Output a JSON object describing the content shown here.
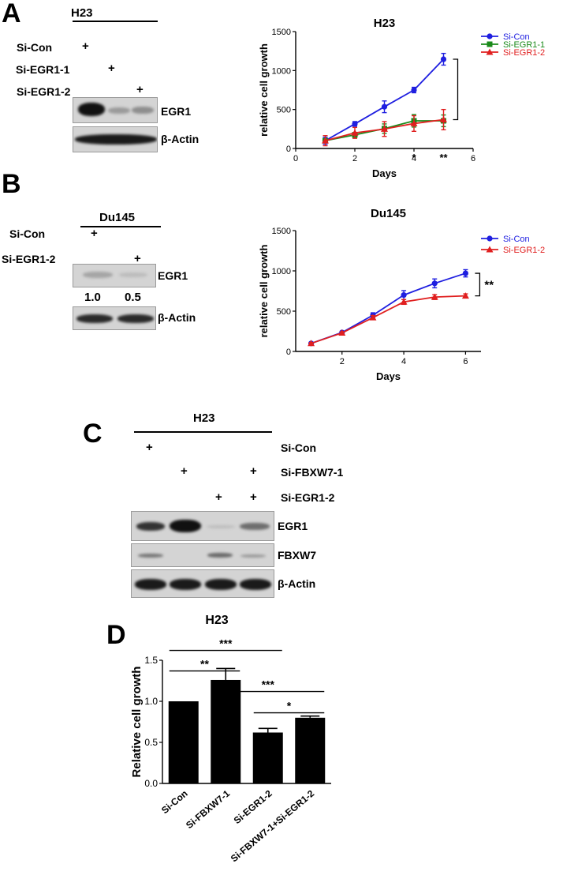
{
  "panel_a": {
    "label": "A",
    "blot": {
      "cell_line": "H23",
      "conditions": [
        "Si-Con",
        "Si-EGR1-1",
        "Si-EGR1-2"
      ],
      "plus": "+",
      "proteins": [
        "EGR1",
        "β-Actin"
      ]
    }
  },
  "panel_b": {
    "label": "B",
    "blot": {
      "cell_line": "Du145",
      "conditions": [
        "Si-Con",
        "Si-EGR1-2"
      ],
      "plus": "+",
      "proteins": [
        "EGR1",
        "β-Actin"
      ],
      "quantification": [
        "1.0",
        "0.5"
      ]
    }
  },
  "panel_c": {
    "label": "C",
    "blot": {
      "cell_line": "H23",
      "conditions": [
        "Si-Con",
        "Si-FBXW7-1",
        "Si-EGR1-2"
      ],
      "plus": "+",
      "proteins": [
        "EGR1",
        "FBXW7",
        "β-Actin"
      ]
    }
  },
  "panel_d": {
    "label": "D"
  },
  "chart_data": [
    {
      "id": "a",
      "type": "line",
      "title": "H23",
      "xlabel": "Days",
      "ylabel": "relative cell growth",
      "xlim": [
        0,
        6
      ],
      "ylim": [
        0,
        1500
      ],
      "xticks": [
        "0",
        "2",
        "4",
        "6"
      ],
      "yticks": [
        "0",
        "500",
        "1000",
        "1500"
      ],
      "legend_position": "top-right",
      "series": [
        {
          "name": "Si-Con",
          "color": "#1f1fe0",
          "marker": "circle",
          "x": [
            1,
            2,
            3,
            4,
            5
          ],
          "y": [
            100,
            315,
            535,
            750,
            1145
          ],
          "err": [
            45,
            30,
            75,
            35,
            75
          ]
        },
        {
          "name": "Si-EGR1-1",
          "color": "#1a8a1a",
          "marker": "square",
          "x": [
            1,
            2,
            3,
            4,
            5
          ],
          "y": [
            100,
            175,
            255,
            355,
            355
          ],
          "err": [
            25,
            30,
            60,
            80,
            75
          ]
        },
        {
          "name": "Si-EGR1-2",
          "color": "#e01f1f",
          "marker": "triangle",
          "x": [
            1,
            2,
            3,
            4,
            5
          ],
          "y": [
            100,
            200,
            250,
            320,
            370
          ],
          "err": [
            65,
            70,
            95,
            100,
            130
          ]
        }
      ],
      "annotations": [
        {
          "x": 4,
          "text": "*"
        },
        {
          "x": 5,
          "text": "**"
        }
      ]
    },
    {
      "id": "b",
      "type": "line",
      "title": "Du145",
      "xlabel": "Days",
      "ylabel": "relative cell growth",
      "xlim": [
        0.5,
        6.5
      ],
      "ylim": [
        0,
        1500
      ],
      "xticks": [
        "2",
        "4",
        "6"
      ],
      "yticks": [
        "0",
        "500",
        "1000",
        "1500"
      ],
      "legend_position": "top-right",
      "series": [
        {
          "name": "Si-Con",
          "color": "#1f1fe0",
          "marker": "circle",
          "x": [
            1,
            2,
            3,
            4,
            5,
            6
          ],
          "y": [
            100,
            235,
            450,
            700,
            845,
            970
          ],
          "err": [
            10,
            15,
            30,
            55,
            55,
            45
          ]
        },
        {
          "name": "Si-EGR1-2",
          "color": "#e01f1f",
          "marker": "triangle",
          "x": [
            1,
            2,
            3,
            4,
            5,
            6
          ],
          "y": [
            100,
            230,
            420,
            615,
            675,
            690
          ],
          "err": [
            10,
            15,
            25,
            30,
            30,
            25
          ]
        }
      ],
      "annotations": [
        {
          "x": 6,
          "text": "**"
        }
      ]
    },
    {
      "id": "d",
      "type": "bar",
      "title": "H23",
      "xlabel": "",
      "ylabel": "Relative cell growth",
      "ylim": [
        0,
        1.5
      ],
      "yticks": [
        "0.0",
        "0.5",
        "1.0",
        "1.5"
      ],
      "categories": [
        "Si-Con",
        "Si-FBXW7-1",
        "Si-EGR1-2",
        "Si-FBXW7-1+Si-EGR1-2"
      ],
      "values": [
        1.0,
        1.26,
        0.62,
        0.8
      ],
      "err": [
        0,
        0.14,
        0.05,
        0.02
      ],
      "significance": [
        {
          "from": 0,
          "to": 1,
          "text": "**"
        },
        {
          "from": 0,
          "to": 2,
          "text": "***"
        },
        {
          "from": 1,
          "to": 3,
          "text": "***"
        },
        {
          "from": 2,
          "to": 3,
          "text": "*"
        }
      ]
    }
  ]
}
